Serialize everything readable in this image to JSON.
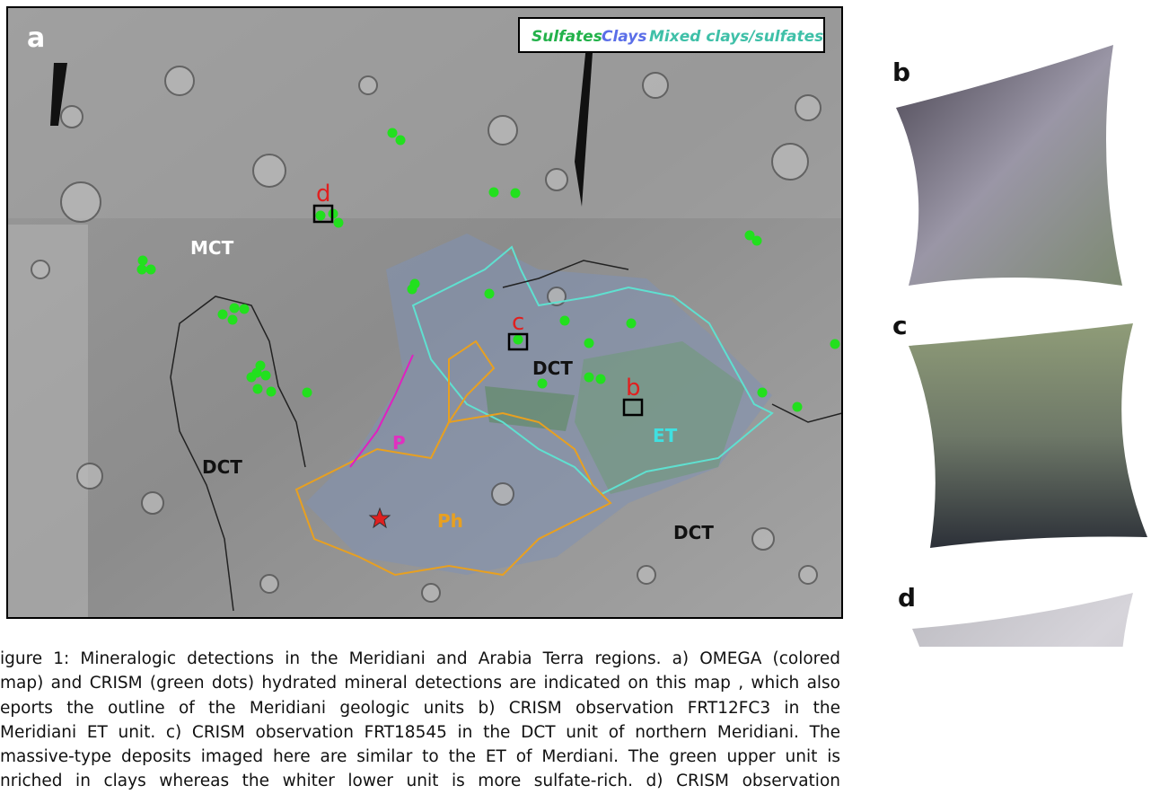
{
  "map": {
    "panel_label": "a",
    "legend": {
      "sulfates": "Sulfates",
      "clays": "Clays",
      "mixed": "Mixed clays/sulfates"
    },
    "unit_labels": [
      "MCT",
      "DCT",
      "DCT",
      "DCT",
      "ET",
      "P",
      "Ph"
    ],
    "site_labels": [
      "d",
      "c",
      "b"
    ]
  },
  "panels": [
    {
      "label": "b"
    },
    {
      "label": "c"
    },
    {
      "label": "d"
    }
  ],
  "caption": {
    "lines": [
      "igure 1: Mineralogic detections in the Meridiani and Arabia Terra regions. a) OMEGA (colored",
      "map) and CRISM (green dots) hydrated mineral detections are indicated on this map , which also",
      "eports the outline of the Meridiani geologic units b) CRISM observation FRT12FC3 in the",
      "Meridiani ET unit. c) CRISM observation FRT18545 in the DCT unit of northern Meridiani. The",
      "massive-type deposits imaged here are similar to the ET of Merdiani. The green upper unit is",
      "nriched in clays whereas the whiter lower unit is more sulfate-rich. d)  CRISM observation"
    ]
  }
}
